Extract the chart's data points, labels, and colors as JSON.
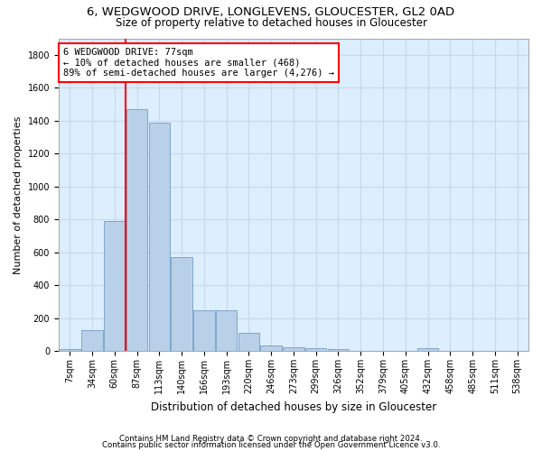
{
  "title1": "6, WEDGWOOD DRIVE, LONGLEVENS, GLOUCESTER, GL2 0AD",
  "title2": "Size of property relative to detached houses in Gloucester",
  "xlabel": "Distribution of detached houses by size in Gloucester",
  "ylabel": "Number of detached properties",
  "footer1": "Contains HM Land Registry data © Crown copyright and database right 2024.",
  "footer2": "Contains public sector information licensed under the Open Government Licence v3.0.",
  "bin_labels": [
    "7sqm",
    "34sqm",
    "60sqm",
    "87sqm",
    "113sqm",
    "140sqm",
    "166sqm",
    "193sqm",
    "220sqm",
    "246sqm",
    "273sqm",
    "299sqm",
    "326sqm",
    "352sqm",
    "379sqm",
    "405sqm",
    "432sqm",
    "458sqm",
    "485sqm",
    "511sqm",
    "538sqm"
  ],
  "bar_values": [
    10,
    125,
    790,
    1470,
    1390,
    570,
    250,
    245,
    110,
    35,
    25,
    15,
    10,
    0,
    0,
    0,
    15,
    0,
    0,
    0,
    0
  ],
  "bar_color": "#b8d0e8",
  "bar_edge_color": "#6090c0",
  "vline_x": 3.0,
  "vline_color": "red",
  "annotation_text": "6 WEDGWOOD DRIVE: 77sqm\n← 10% of detached houses are smaller (468)\n89% of semi-detached houses are larger (4,276) →",
  "annotation_box_color": "white",
  "annotation_box_edge": "red",
  "ylim": [
    0,
    1900
  ],
  "yticks": [
    0,
    200,
    400,
    600,
    800,
    1000,
    1200,
    1400,
    1600,
    1800
  ],
  "grid_color": "#c8d8e8",
  "bg_color": "#ddeeff",
  "title1_fontsize": 9.5,
  "title2_fontsize": 8.5,
  "xlabel_fontsize": 8.5,
  "ylabel_fontsize": 8.0,
  "tick_fontsize": 7.0,
  "footer_fontsize": 6.2,
  "annot_fontsize": 7.5
}
